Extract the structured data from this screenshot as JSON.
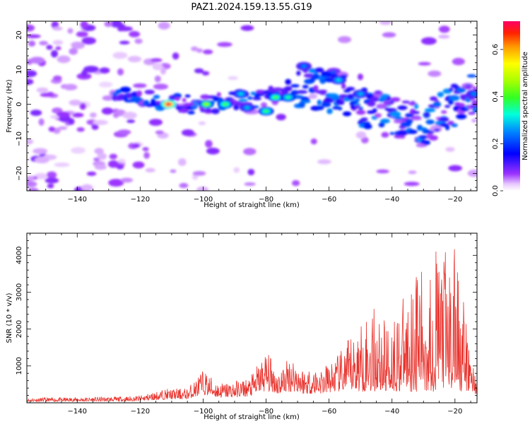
{
  "figure_title": "PAZ1.2024.159.13.55.G19",
  "chart_data": [
    {
      "type": "heatmap",
      "xlabel": "Height of straight line (km)",
      "ylabel": "Frequency (Hz)",
      "xlim": [
        -156,
        -13
      ],
      "ylim": [
        -25,
        24
      ],
      "xticks": [
        -140,
        -120,
        -100,
        -80,
        -60,
        -40,
        -20
      ],
      "yticks": [
        -20,
        -10,
        0,
        10,
        20
      ],
      "colorbar": {
        "label": "Normalized spectral amplitude",
        "range": [
          0,
          0.72
        ],
        "ticks": [
          0.0,
          0.2,
          0.4,
          0.6
        ],
        "colormap": "gist_rainbow_r"
      },
      "ridge": [
        {
          "x": -120,
          "y": 2
        },
        {
          "x": -110,
          "y": 0
        },
        {
          "x": -100,
          "y": 0
        },
        {
          "x": -90,
          "y": 1
        },
        {
          "x": -80,
          "y": 2
        },
        {
          "x": -70,
          "y": 5
        },
        {
          "x": -60,
          "y": 4
        },
        {
          "x": -50,
          "y": 0
        },
        {
          "x": -40,
          "y": -4
        },
        {
          "x": -30,
          "y": -6
        },
        {
          "x": -20,
          "y": 0
        },
        {
          "x": -13,
          "y": 3
        }
      ],
      "peaks": [
        {
          "x": -111,
          "y": 0,
          "amplitude": 0.72
        },
        {
          "x": -99,
          "y": 0,
          "amplitude": 0.45
        },
        {
          "x": -93,
          "y": 0,
          "amplitude": 0.4
        },
        {
          "x": -77,
          "y": 2,
          "amplitude": 0.4
        },
        {
          "x": -80,
          "y": -2,
          "amplitude": 0.38
        },
        {
          "x": -73,
          "y": 2,
          "amplitude": 0.35
        },
        {
          "x": -88,
          "y": 3,
          "amplitude": 0.3
        },
        {
          "x": -86,
          "y": -1,
          "amplitude": 0.28
        },
        {
          "x": -57,
          "y": 7,
          "amplitude": 0.3
        },
        {
          "x": -50,
          "y": 3,
          "amplitude": 0.28
        },
        {
          "x": -68,
          "y": 11,
          "amplitude": 0.25
        },
        {
          "x": -14,
          "y": 3,
          "amplitude": 0.25
        }
      ]
    },
    {
      "type": "line",
      "xlabel": "Height of straight line (km)",
      "ylabel": "SNR (10 * v/v)",
      "xlim": [
        -156,
        -13
      ],
      "ylim": [
        0,
        4600
      ],
      "xticks": [
        -140,
        -120,
        -100,
        -80,
        -60,
        -40,
        -20
      ],
      "yticks": [
        1000,
        2000,
        3000,
        4000
      ],
      "color": "#e8312b",
      "envelope": [
        {
          "x": -156,
          "y": 130
        },
        {
          "x": -140,
          "y": 150
        },
        {
          "x": -125,
          "y": 170
        },
        {
          "x": -120,
          "y": 200
        },
        {
          "x": -112,
          "y": 380
        },
        {
          "x": -105,
          "y": 400
        },
        {
          "x": -100,
          "y": 900
        },
        {
          "x": -95,
          "y": 550
        },
        {
          "x": -90,
          "y": 600
        },
        {
          "x": -85,
          "y": 700
        },
        {
          "x": -80,
          "y": 1450
        },
        {
          "x": -76,
          "y": 900
        },
        {
          "x": -72,
          "y": 1350
        },
        {
          "x": -68,
          "y": 950
        },
        {
          "x": -62,
          "y": 1000
        },
        {
          "x": -58,
          "y": 1200
        },
        {
          "x": -54,
          "y": 1700
        },
        {
          "x": -50,
          "y": 2200
        },
        {
          "x": -46,
          "y": 2650
        },
        {
          "x": -42,
          "y": 2200
        },
        {
          "x": -38,
          "y": 2600
        },
        {
          "x": -35,
          "y": 3050
        },
        {
          "x": -32,
          "y": 3800
        },
        {
          "x": -29,
          "y": 3300
        },
        {
          "x": -26,
          "y": 4300
        },
        {
          "x": -24,
          "y": 4600
        },
        {
          "x": -22,
          "y": 3700
        },
        {
          "x": -19,
          "y": 4600
        },
        {
          "x": -17,
          "y": 2500
        },
        {
          "x": -15,
          "y": 1300
        },
        {
          "x": -13,
          "y": 800
        }
      ]
    }
  ]
}
